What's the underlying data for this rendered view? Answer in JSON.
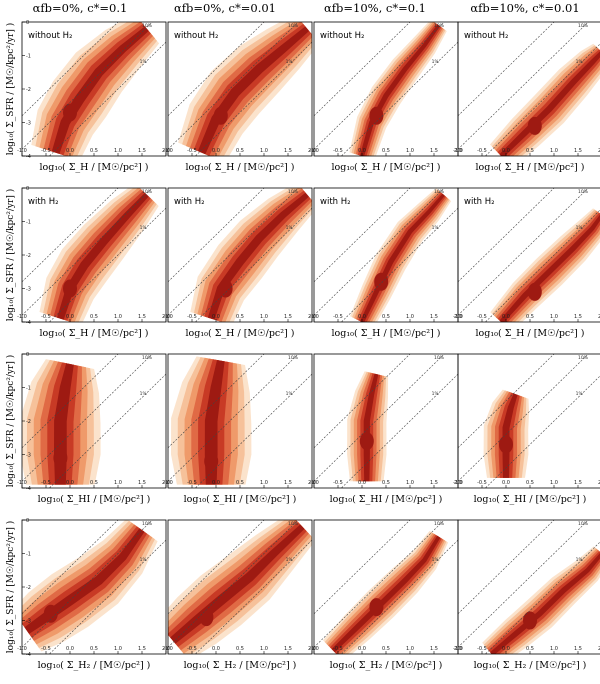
{
  "chart_data": {
    "type": "heatmap",
    "description_note": "4x4 grid of 2D density contour panels (star formation law). Columns = feedback/efficiency models; rows = gas component on x-axis.",
    "columns": [
      {
        "title": "αfb=0%, c*=0.1"
      },
      {
        "title": "αfb=0%, c*=0.01"
      },
      {
        "title": "αfb=10%, c*=0.1"
      },
      {
        "title": "αfb=10%, c*=0.01"
      }
    ],
    "rows": [
      {
        "panel_label": "without H₂",
        "xlabel": "log₁₀( Σ_H / [M☉/pc²] )",
        "ylabel": "log₁₀( Σ_SFR / [M☉/kpc²/yr] )"
      },
      {
        "panel_label": "with H₂",
        "xlabel": "log₁₀( Σ_H / [M☉/pc²] )",
        "ylabel": "log₁₀( Σ_SFR / [M☉/kpc²/yr] )"
      },
      {
        "panel_label": "",
        "xlabel": "log₁₀( Σ_HI / [M☉/pc²] )",
        "ylabel": "log₁₀( Σ_SFR / [M☉/kpc²/yr] )"
      },
      {
        "panel_label": "",
        "xlabel": "log₁₀( Σ_H₂ / [M☉/pc²] )",
        "ylabel": "log₁₀( Σ_SFR / [M☉/kpc²/yr] )"
      }
    ],
    "xlim": [
      -1.0,
      2.0
    ],
    "ylim": [
      -4,
      0
    ],
    "xticks": [
      "-1.0",
      "-0.5",
      "0.0",
      "0.5",
      "1.0",
      "1.5",
      "2.0"
    ],
    "yticks": [
      "-4",
      "-3",
      "-2",
      "-1",
      "0"
    ],
    "reference_lines": [
      {
        "label": "100%",
        "intercept": -1.0
      },
      {
        "label": "10%",
        "intercept": -2.0
      },
      {
        "label": "1%",
        "intercept": -3.0
      }
    ],
    "contour_levels": 5,
    "colors": [
      "#fbe3cc",
      "#f6c19a",
      "#ef9a6a",
      "#e06a45",
      "#c83a25",
      "#9e1a12"
    ],
    "panels": [
      [
        {
          "ridge": [
            [
              -0.3,
              -3.9
            ],
            [
              -0.1,
              -3.0
            ],
            [
              0.2,
              -2.3
            ],
            [
              0.6,
              -1.5
            ],
            [
              1.1,
              -0.8
            ],
            [
              1.6,
              -0.2
            ]
          ],
          "width": 0.35,
          "core": [
            0.0,
            -2.7
          ]
        },
        {
          "ridge": [
            [
              -0.3,
              -3.9
            ],
            [
              0.0,
              -2.9
            ],
            [
              0.4,
              -2.1
            ],
            [
              0.9,
              -1.4
            ],
            [
              1.4,
              -0.8
            ],
            [
              1.9,
              -0.2
            ]
          ],
          "width": 0.35,
          "core": [
            0.1,
            -2.8
          ]
        },
        {
          "ridge": [
            [
              0.0,
              -4.0
            ],
            [
              0.2,
              -3.0
            ],
            [
              0.5,
              -2.2
            ],
            [
              0.9,
              -1.4
            ],
            [
              1.3,
              -0.7
            ],
            [
              1.6,
              -0.1
            ]
          ],
          "width": 0.18,
          "core": [
            0.3,
            -2.8
          ]
        },
        {
          "ridge": [
            [
              -0.1,
              -4.0
            ],
            [
              0.4,
              -3.3
            ],
            [
              0.9,
              -2.6
            ],
            [
              1.4,
              -1.8
            ],
            [
              1.8,
              -1.2
            ],
            [
              2.0,
              -0.9
            ]
          ],
          "width": 0.22,
          "core": [
            0.6,
            -3.1
          ]
        }
      ],
      [
        {
          "ridge": [
            [
              -0.2,
              -3.9
            ],
            [
              0.0,
              -3.0
            ],
            [
              0.3,
              -2.3
            ],
            [
              0.7,
              -1.6
            ],
            [
              1.2,
              -0.8
            ],
            [
              1.6,
              -0.2
            ]
          ],
          "width": 0.3,
          "core": [
            0.0,
            -3.0
          ]
        },
        {
          "ridge": [
            [
              -0.1,
              -3.9
            ],
            [
              0.1,
              -3.0
            ],
            [
              0.5,
              -2.2
            ],
            [
              0.9,
              -1.5
            ],
            [
              1.4,
              -0.8
            ],
            [
              1.9,
              -0.2
            ]
          ],
          "width": 0.3,
          "core": [
            0.2,
            -3.0
          ]
        },
        {
          "ridge": [
            [
              0.0,
              -4.0
            ],
            [
              0.3,
              -3.1
            ],
            [
              0.6,
              -2.2
            ],
            [
              1.0,
              -1.3
            ],
            [
              1.4,
              -0.7
            ],
            [
              1.7,
              -0.2
            ]
          ],
          "width": 0.18,
          "core": [
            0.4,
            -2.8
          ]
        },
        {
          "ridge": [
            [
              -0.1,
              -4.0
            ],
            [
              0.4,
              -3.2
            ],
            [
              0.9,
              -2.5
            ],
            [
              1.4,
              -1.8
            ],
            [
              1.8,
              -1.2
            ],
            [
              2.0,
              -0.8
            ]
          ],
          "width": 0.2,
          "core": [
            0.6,
            -3.1
          ]
        }
      ],
      [
        {
          "ridge": [
            [
              -0.2,
              -3.9
            ],
            [
              -0.2,
              -3.0
            ],
            [
              -0.2,
              -2.0
            ],
            [
              -0.1,
              -1.0
            ],
            [
              0.0,
              -0.3
            ]
          ],
          "width": 0.45,
          "core": [
            -0.2,
            -3.1
          ]
        },
        {
          "ridge": [
            [
              -0.1,
              -3.9
            ],
            [
              -0.1,
              -3.0
            ],
            [
              -0.1,
              -2.0
            ],
            [
              0.0,
              -1.0
            ],
            [
              0.1,
              -0.2
            ]
          ],
          "width": 0.45,
          "core": [
            -0.1,
            -3.2
          ]
        },
        {
          "ridge": [
            [
              0.1,
              -3.8
            ],
            [
              0.1,
              -3.0
            ],
            [
              0.1,
              -2.0
            ],
            [
              0.2,
              -1.2
            ],
            [
              0.3,
              -0.6
            ]
          ],
          "width": 0.22,
          "core": [
            0.1,
            -2.6
          ]
        },
        {
          "ridge": [
            [
              0.0,
              -3.7
            ],
            [
              0.0,
              -3.0
            ],
            [
              0.0,
              -2.2
            ],
            [
              0.1,
              -1.6
            ],
            [
              0.2,
              -1.2
            ]
          ],
          "width": 0.25,
          "core": [
            0.0,
            -2.7
          ]
        }
      ],
      [
        {
          "ridge": [
            [
              -0.9,
              -3.3
            ],
            [
              -0.5,
              -2.9
            ],
            [
              0.0,
              -2.4
            ],
            [
              0.6,
              -1.8
            ],
            [
              1.1,
              -1.1
            ],
            [
              1.5,
              -0.3
            ]
          ],
          "width": 0.35,
          "core": [
            -0.4,
            -2.8
          ]
        },
        {
          "ridge": [
            [
              -0.9,
              -3.6
            ],
            [
              -0.4,
              -3.0
            ],
            [
              0.1,
              -2.4
            ],
            [
              0.7,
              -1.7
            ],
            [
              1.2,
              -1.0
            ],
            [
              1.8,
              -0.2
            ]
          ],
          "width": 0.35,
          "core": [
            -0.2,
            -2.9
          ]
        },
        {
          "ridge": [
            [
              -0.6,
              -3.9
            ],
            [
              -0.1,
              -3.2
            ],
            [
              0.4,
              -2.5
            ],
            [
              0.9,
              -1.8
            ],
            [
              1.3,
              -1.2
            ],
            [
              1.6,
              -0.5
            ]
          ],
          "width": 0.2,
          "core": [
            0.3,
            -2.6
          ]
        },
        {
          "ridge": [
            [
              -0.3,
              -4.0
            ],
            [
              0.2,
              -3.4
            ],
            [
              0.7,
              -2.8
            ],
            [
              1.2,
              -2.1
            ],
            [
              1.7,
              -1.5
            ],
            [
              2.0,
              -1.0
            ]
          ],
          "width": 0.2,
          "core": [
            0.5,
            -3.0
          ]
        }
      ]
    ]
  }
}
